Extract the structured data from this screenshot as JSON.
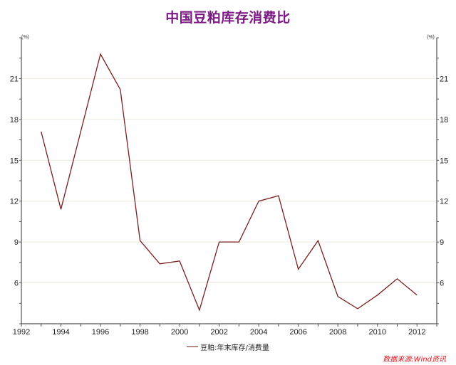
{
  "header": {
    "title": "中国豆粕库存消费比"
  },
  "legend": {
    "items": [
      {
        "label": "豆粕:年末库存/消费量",
        "color": "#7a1f1f"
      }
    ]
  },
  "source": {
    "text": "数据来源:Wind资讯",
    "color": "#e0141e"
  },
  "axes": {
    "left_unit": "(%)",
    "right_unit": "(%)"
  },
  "colors": {
    "title": "#7b1a82",
    "line": "#7a1f1f",
    "gridline": "#eeeadf",
    "axis": "#555555"
  },
  "chart_data": {
    "type": "line",
    "title": "中国豆粕库存消费比",
    "xlabel": "",
    "ylabel": "(%)",
    "y2label": "(%)",
    "xlim": [
      1992,
      2013
    ],
    "ylim": [
      3,
      24
    ],
    "x_ticks": [
      "1992",
      "1994",
      "1996",
      "1998",
      "2000",
      "2002",
      "2004",
      "2006",
      "2008",
      "2010",
      "2012"
    ],
    "y_ticks": [
      "6",
      "9",
      "12",
      "15",
      "18",
      "21"
    ],
    "grid": "horizontal",
    "legend_position": "bottom-center",
    "x": [
      1993,
      1994,
      1996,
      1997,
      1998,
      1999,
      2000,
      2001,
      2002,
      2003,
      2004,
      2005,
      2006,
      2007,
      2008,
      2009,
      2010,
      2011,
      2012
    ],
    "series": [
      {
        "name": "豆粕:年末库存/消费量",
        "values": [
          17.1,
          11.4,
          22.8,
          20.2,
          9.1,
          7.4,
          7.6,
          4.0,
          9.0,
          9.0,
          12.0,
          12.4,
          7.0,
          9.1,
          5.0,
          4.1,
          5.1,
          6.3,
          5.1
        ]
      }
    ],
    "annotations": [
      "数据来源:Wind资讯"
    ]
  }
}
